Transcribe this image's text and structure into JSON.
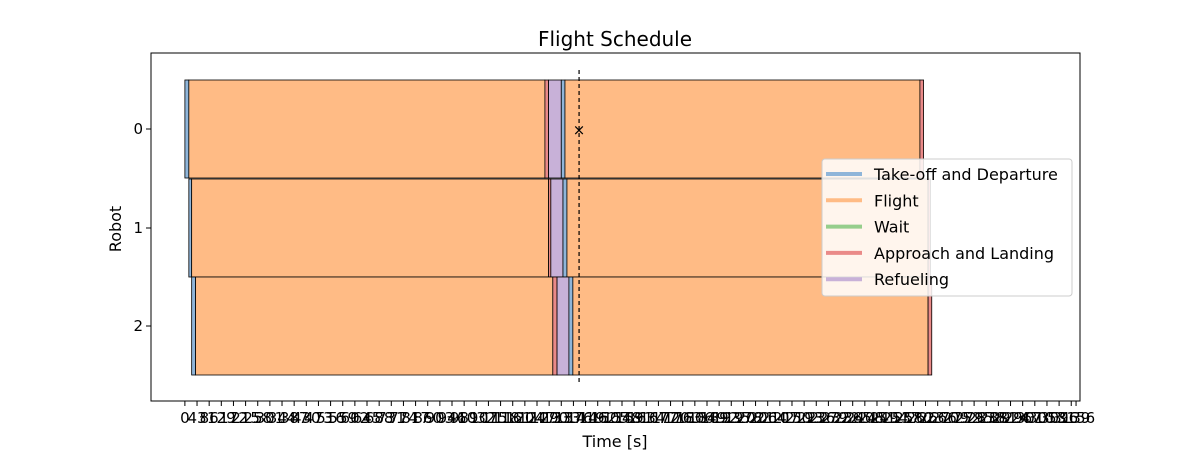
{
  "chart_data": {
    "type": "gantt",
    "title": "Flight Schedule",
    "xlabel": "Time [s]",
    "ylabel": "Robot",
    "xlim": [
      -120,
      3170
    ],
    "x_tick_labels": [
      "0",
      "43",
      "86",
      "129",
      "172",
      "215",
      "258",
      "301",
      "344",
      "387",
      "430",
      "473",
      "516",
      "559",
      "602",
      "645",
      "688",
      "731",
      "774",
      "817",
      "860",
      "903",
      "946",
      "989",
      "1032",
      "1075",
      "1118",
      "1161",
      "1204",
      "1247",
      "1290",
      "1333",
      "1376",
      "1419",
      "1462",
      "1505",
      "1548",
      "1591",
      "1634",
      "1677",
      "1720",
      "1763",
      "1806",
      "1849",
      "1892",
      "1935",
      "1978",
      "2021",
      "2064",
      "2107",
      "2150",
      "2193",
      "2236",
      "2279",
      "2322",
      "2365",
      "2408",
      "2451",
      "2494",
      "2537",
      "2580",
      "2623",
      "2666",
      "2709",
      "2752",
      "2795",
      "2838",
      "2881",
      "2924",
      "2967",
      "3010",
      "3053",
      "3096",
      "3139",
      "3156"
    ],
    "robots": [
      "0",
      "1",
      "2"
    ],
    "phases": [
      "Take-off and Departure",
      "Flight",
      "Wait",
      "Approach and Landing",
      "Refueling"
    ],
    "colors": {
      "Take-off and Departure": "#8fb5d9",
      "Flight": "#ffbb85",
      "Wait": "#96ce8c",
      "Approach and Landing": "#ea8a88",
      "Refueling": "#c8b1d8"
    },
    "tasks": [
      {
        "robot": 0,
        "phase": "Take-off and Departure",
        "start": 0,
        "end": 14
      },
      {
        "robot": 0,
        "phase": "Flight",
        "start": 14,
        "end": 1275
      },
      {
        "robot": 0,
        "phase": "Approach and Landing",
        "start": 1275,
        "end": 1288
      },
      {
        "robot": 0,
        "phase": "Refueling",
        "start": 1288,
        "end": 1333
      },
      {
        "robot": 0,
        "phase": "Take-off and Departure",
        "start": 1333,
        "end": 1346
      },
      {
        "robot": 0,
        "phase": "Flight",
        "start": 1346,
        "end": 2603
      },
      {
        "robot": 0,
        "phase": "Approach and Landing",
        "start": 2603,
        "end": 2616
      },
      {
        "robot": 1,
        "phase": "Take-off and Departure",
        "start": 14,
        "end": 24
      },
      {
        "robot": 1,
        "phase": "Flight",
        "start": 24,
        "end": 1288
      },
      {
        "robot": 1,
        "phase": "Approach and Landing",
        "start": 1288,
        "end": 1296
      },
      {
        "robot": 1,
        "phase": "Refueling",
        "start": 1296,
        "end": 1339
      },
      {
        "robot": 1,
        "phase": "Take-off and Departure",
        "start": 1339,
        "end": 1353
      },
      {
        "robot": 1,
        "phase": "Flight",
        "start": 1353,
        "end": 2632
      },
      {
        "robot": 1,
        "phase": "Approach and Landing",
        "start": 2632,
        "end": 2640
      },
      {
        "robot": 2,
        "phase": "Take-off and Departure",
        "start": 24,
        "end": 38
      },
      {
        "robot": 2,
        "phase": "Flight",
        "start": 38,
        "end": 1303
      },
      {
        "robot": 2,
        "phase": "Approach and Landing",
        "start": 1303,
        "end": 1318
      },
      {
        "robot": 2,
        "phase": "Refueling",
        "start": 1318,
        "end": 1360
      },
      {
        "robot": 2,
        "phase": "Take-off and Departure",
        "start": 1360,
        "end": 1374
      },
      {
        "robot": 2,
        "phase": "Flight",
        "start": 1374,
        "end": 2632
      },
      {
        "robot": 2,
        "phase": "Approach and Landing",
        "start": 2632,
        "end": 2645
      }
    ],
    "current_time": 1396,
    "marker": {
      "robot": 0,
      "time": 1396,
      "symbol": "×"
    },
    "legend_position": "center-right",
    "grid": false
  }
}
